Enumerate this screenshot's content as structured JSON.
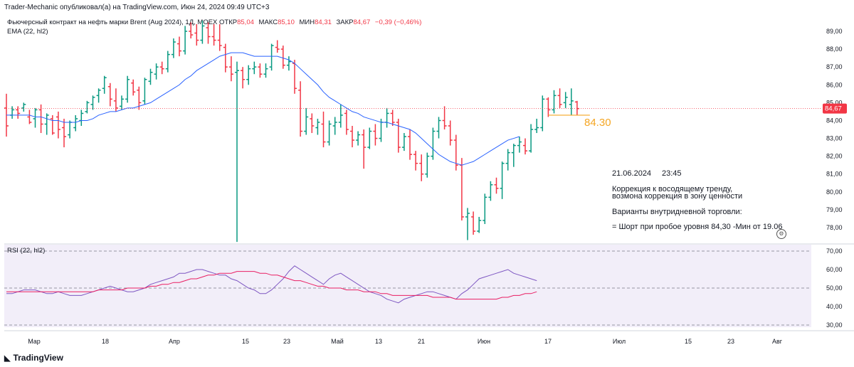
{
  "header": {
    "text": "Trader-Mechanic опубликовал(а) на TradingView.com, Июн 24, 2024 09:49 UTC+3"
  },
  "legend": {
    "instrument": "Фьючерсный контракт на нефть марки Brent (Aug 2024), 1Д, MOEX",
    "open_label": "ОТКР",
    "open": "85,04",
    "high_label": "МАКС",
    "high": "85,10",
    "low_label": "МИН",
    "low": "84,31",
    "close_label": "ЗАКР",
    "close": "84,67",
    "change": "−0,39 (−0,46%)",
    "ema": "EMA (22, hl2)",
    "rsi": "RSI (22, hl2)"
  },
  "annotation": {
    "level": "84.30",
    "date": "21.06.2024",
    "time": "23:45",
    "line1": "Коррекция к восодящему тренду,",
    "line2": "возмона коррекция в зону ценности",
    "line3": "Варианты внутридневной торговли:",
    "line4": "= Шорт при пробое уровня 84,30 -Мин от 19.06"
  },
  "footer": {
    "brand": "TradingView"
  },
  "colors": {
    "up": "#089981",
    "down": "#f23645",
    "ema": "#2962ff",
    "rsi": "#7e57c2",
    "rsi_ma": "#e91e63",
    "level": "#f5a623"
  },
  "chart_data": [
    {
      "type": "ohlc",
      "price_axis": {
        "ticks": [
          "89,00",
          "88,00",
          "87,00",
          "86,00",
          "85,00",
          "84,00",
          "83,00",
          "82,00",
          "81,00",
          "80,00",
          "79,00",
          "78,00"
        ],
        "last_price_label": "84,67",
        "range": [
          77.2,
          89.4
        ]
      },
      "time_axis": {
        "labels": [
          "Мар",
          "18",
          "Апр",
          "15",
          "23",
          "Май",
          "13",
          "21",
          "Июн",
          "17",
          "Июл",
          "15",
          "23",
          "Авг"
        ]
      },
      "bars": [
        [
          84.7,
          85.5,
          83.1,
          83.7
        ],
        [
          84.3,
          84.8,
          84.1,
          84.6
        ],
        [
          84.6,
          84.8,
          84.1,
          84.4
        ],
        [
          84.7,
          85.0,
          84.5,
          84.9
        ],
        [
          84.2,
          84.6,
          83.8,
          83.9
        ],
        [
          84.1,
          84.7,
          83.6,
          84.6
        ],
        [
          84.6,
          84.9,
          83.3,
          83.8
        ],
        [
          83.8,
          84.4,
          83.2,
          84.3
        ],
        [
          84.1,
          84.3,
          83.2,
          83.3
        ],
        [
          84.2,
          84.5,
          83.0,
          83.5
        ],
        [
          83.6,
          84.1,
          82.5,
          83.1
        ],
        [
          83.2,
          84.0,
          83.0,
          83.9
        ],
        [
          83.6,
          84.3,
          83.4,
          84.1
        ],
        [
          84.0,
          84.6,
          83.7,
          84.4
        ],
        [
          84.5,
          85.1,
          84.4,
          85.0
        ],
        [
          84.9,
          85.4,
          84.6,
          85.3
        ],
        [
          85.4,
          85.8,
          85.0,
          85.7
        ],
        [
          85.8,
          86.5,
          85.5,
          86.4
        ],
        [
          85.9,
          86.1,
          84.8,
          85.2
        ],
        [
          85.1,
          85.8,
          84.5,
          84.7
        ],
        [
          84.8,
          85.4,
          84.6,
          85.2
        ],
        [
          85.2,
          86.5,
          85.0,
          86.3
        ],
        [
          86.1,
          86.3,
          85.4,
          85.6
        ],
        [
          85.7,
          85.9,
          84.6,
          85.0
        ],
        [
          85.1,
          86.4,
          84.9,
          86.3
        ],
        [
          86.2,
          86.9,
          86.0,
          86.7
        ],
        [
          86.6,
          87.2,
          86.3,
          87.0
        ],
        [
          87.0,
          87.3,
          86.6,
          86.9
        ],
        [
          86.9,
          87.9,
          86.7,
          87.7
        ],
        [
          87.7,
          88.6,
          87.5,
          88.4
        ],
        [
          88.3,
          88.7,
          87.6,
          87.9
        ],
        [
          87.9,
          89.3,
          87.7,
          89.0
        ],
        [
          89.0,
          89.5,
          88.6,
          88.8
        ],
        [
          88.9,
          89.4,
          88.2,
          88.5
        ],
        [
          88.5,
          89.6,
          88.3,
          89.3
        ],
        [
          89.2,
          89.5,
          88.3,
          88.7
        ],
        [
          88.7,
          89.4,
          88.2,
          88.5
        ],
        [
          88.5,
          89.4,
          87.9,
          88.2
        ],
        [
          88.1,
          88.3,
          86.7,
          87.0
        ],
        [
          87.0,
          87.6,
          86.2,
          86.6
        ],
        [
          86.7,
          87.3,
          77.2,
          86.8
        ],
        [
          86.8,
          87.0,
          85.8,
          86.3
        ],
        [
          86.3,
          87.1,
          86.0,
          86.9
        ],
        [
          86.9,
          87.3,
          86.6,
          87.0
        ],
        [
          87.0,
          87.2,
          86.4,
          86.6
        ],
        [
          86.6,
          87.2,
          86.4,
          86.9
        ],
        [
          87.0,
          88.3,
          86.8,
          88.2
        ],
        [
          88.1,
          88.5,
          87.8,
          88.0
        ],
        [
          88.0,
          88.2,
          86.9,
          87.1
        ],
        [
          87.1,
          87.6,
          86.8,
          87.3
        ],
        [
          87.2,
          87.4,
          85.5,
          85.8
        ],
        [
          85.7,
          86.2,
          83.1,
          83.4
        ],
        [
          83.4,
          84.7,
          83.2,
          84.2
        ],
        [
          84.1,
          84.4,
          83.3,
          83.7
        ],
        [
          83.6,
          84.1,
          83.2,
          83.9
        ],
        [
          83.8,
          84.5,
          82.5,
          82.8
        ],
        [
          82.8,
          84.0,
          82.6,
          83.8
        ],
        [
          83.7,
          84.2,
          83.2,
          83.9
        ],
        [
          83.9,
          84.9,
          83.6,
          84.3
        ],
        [
          84.4,
          84.6,
          83.2,
          83.5
        ],
        [
          83.4,
          83.7,
          82.5,
          82.9
        ],
        [
          82.9,
          83.4,
          82.6,
          83.2
        ],
        [
          83.2,
          83.5,
          81.3,
          82.5
        ],
        [
          82.5,
          83.6,
          82.4,
          83.4
        ],
        [
          83.4,
          83.8,
          82.6,
          83.0
        ],
        [
          83.0,
          84.1,
          82.8,
          83.9
        ],
        [
          83.9,
          84.7,
          83.6,
          84.4
        ],
        [
          84.4,
          84.6,
          83.7,
          83.9
        ],
        [
          83.9,
          84.1,
          82.2,
          82.5
        ],
        [
          82.5,
          83.3,
          82.3,
          83.1
        ],
        [
          83.1,
          83.5,
          81.8,
          82.1
        ],
        [
          82.1,
          82.3,
          81.2,
          81.6
        ],
        [
          81.6,
          82.1,
          80.6,
          81.0
        ],
        [
          81.0,
          82.2,
          80.8,
          82.0
        ],
        [
          82.0,
          83.6,
          81.8,
          83.4
        ],
        [
          83.4,
          84.2,
          83.0,
          84.0
        ],
        [
          84.0,
          84.8,
          83.5,
          83.7
        ],
        [
          83.7,
          84.0,
          82.6,
          82.9
        ],
        [
          82.9,
          83.2,
          81.2,
          81.5
        ],
        [
          81.5,
          81.9,
          78.4,
          78.6
        ],
        [
          78.6,
          79.1,
          77.3,
          78.8
        ],
        [
          78.6,
          78.9,
          77.6,
          77.8
        ],
        [
          77.8,
          78.6,
          77.7,
          78.4
        ],
        [
          78.4,
          79.9,
          78.2,
          79.7
        ],
        [
          79.7,
          80.6,
          79.5,
          80.4
        ],
        [
          80.4,
          80.8,
          79.9,
          80.2
        ],
        [
          80.2,
          81.7,
          79.6,
          81.6
        ],
        [
          81.6,
          82.4,
          81.2,
          82.2
        ],
        [
          82.2,
          82.7,
          81.4,
          82.6
        ],
        [
          82.6,
          83.1,
          82.2,
          82.8
        ],
        [
          82.6,
          83.0,
          82.1,
          82.3
        ],
        [
          82.3,
          83.8,
          82.2,
          83.5
        ],
        [
          83.5,
          84.1,
          83.3,
          83.6
        ],
        [
          83.6,
          85.4,
          83.4,
          85.2
        ],
        [
          85.2,
          85.3,
          84.2,
          84.6
        ],
        [
          84.6,
          85.7,
          84.4,
          85.4
        ],
        [
          85.4,
          85.8,
          84.7,
          84.9
        ],
        [
          85.0,
          85.6,
          84.7,
          85.3
        ],
        [
          84.9,
          85.8,
          84.3,
          85.1
        ],
        [
          85.04,
          85.1,
          84.31,
          84.67
        ]
      ],
      "ema": [
        84.3,
        84.3,
        84.3,
        84.3,
        84.3,
        84.2,
        84.2,
        84.1,
        84.0,
        84.0,
        83.9,
        83.9,
        83.9,
        84.0,
        84.0,
        84.1,
        84.3,
        84.4,
        84.5,
        84.5,
        84.6,
        84.7,
        84.7,
        84.8,
        84.9,
        85.0,
        85.2,
        85.4,
        85.6,
        85.8,
        86.0,
        86.3,
        86.5,
        86.8,
        87.0,
        87.2,
        87.4,
        87.6,
        87.7,
        87.8,
        87.8,
        87.8,
        87.7,
        87.6,
        87.6,
        87.6,
        87.6,
        87.6,
        87.5,
        87.4,
        87.2,
        86.9,
        86.6,
        86.3,
        86.0,
        85.6,
        85.3,
        85.1,
        84.9,
        84.7,
        84.5,
        84.4,
        84.2,
        84.1,
        84.0,
        83.9,
        83.9,
        83.8,
        83.7,
        83.6,
        83.5,
        83.3,
        83.0,
        82.7,
        82.4,
        82.1,
        81.9,
        81.7,
        81.6,
        81.5,
        81.6,
        81.7,
        81.9,
        82.1,
        82.3,
        82.5,
        82.7,
        82.9,
        83.0,
        83.1
      ],
      "rsi": {
        "range": [
          30,
          70
        ],
        "ticks": [
          "70,00",
          "60,00",
          "50,00",
          "40,00",
          "30,00"
        ],
        "values": [
          47,
          47,
          48,
          49,
          49,
          49,
          48,
          47,
          47,
          48,
          47,
          46,
          46,
          46,
          47,
          48,
          49,
          50,
          51,
          50,
          49,
          48,
          48,
          49,
          50,
          52,
          53,
          54,
          55,
          56,
          58,
          58,
          59,
          60,
          60,
          59,
          58,
          57,
          57,
          55,
          54,
          52,
          50,
          49,
          47,
          47,
          49,
          52,
          55,
          59,
          62,
          60,
          58,
          56,
          54,
          52,
          55,
          57,
          58,
          56,
          54,
          52,
          50,
          48,
          47,
          46,
          44,
          43,
          42,
          44,
          45,
          46,
          47,
          48,
          48,
          47,
          46,
          45,
          44,
          47,
          49,
          52,
          55,
          56,
          57,
          58,
          59,
          60,
          58,
          57,
          56,
          55,
          54
        ],
        "ma": [
          48,
          48,
          48,
          48,
          48,
          48,
          48,
          48,
          48,
          48,
          48,
          48,
          48,
          48,
          48,
          48,
          49,
          49,
          49,
          49,
          49,
          50,
          50,
          50,
          50,
          51,
          51,
          52,
          52,
          53,
          53,
          54,
          55,
          55,
          56,
          57,
          57,
          58,
          58,
          58,
          59,
          59,
          59,
          59,
          58,
          58,
          57,
          57,
          56,
          55,
          54,
          54,
          53,
          52,
          51,
          51,
          50,
          50,
          50,
          49,
          49,
          49,
          48,
          48,
          48,
          47,
          47,
          46,
          46,
          46,
          46,
          46,
          46,
          46,
          45,
          45,
          45,
          45,
          44,
          44,
          44,
          44,
          44,
          44,
          44,
          44,
          45,
          45,
          46,
          46,
          47,
          47,
          48
        ]
      }
    }
  ]
}
